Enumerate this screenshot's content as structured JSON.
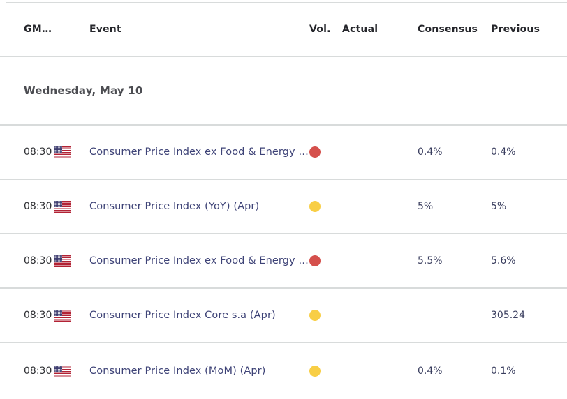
{
  "colors": {
    "border": "#d8dbdb",
    "header_text": "#25262b",
    "day_text": "#4c4d52",
    "time_text": "#2e2f33",
    "event_text": "#3e4377",
    "value_text": "#393d5e",
    "red_dot": "#d5504c",
    "yellow_dot": "#f8ce45",
    "flag_red": "#b22234",
    "flag_blue": "#3c3b6e"
  },
  "header": {
    "columns": {
      "gmt": "GM…",
      "event": "Event",
      "vol": "Vol.",
      "actual": "Actual",
      "consensus": "Consensus",
      "previous": "Previous"
    }
  },
  "sections": [
    {
      "day_label": "Wednesday, May 10",
      "rows": [
        {
          "time": "08:30",
          "country_flag": "us-flag-icon",
          "event": "Consumer Price Index ex Food & Energy …",
          "volatility": "high",
          "actual": "",
          "consensus": "0.4%",
          "previous": "0.4%"
        },
        {
          "time": "08:30",
          "country_flag": "us-flag-icon",
          "event": "Consumer Price Index (YoY) (Apr)",
          "volatility": "medium",
          "actual": "",
          "consensus": "5%",
          "previous": "5%"
        },
        {
          "time": "08:30",
          "country_flag": "us-flag-icon",
          "event": "Consumer Price Index ex Food & Energy …",
          "volatility": "high",
          "actual": "",
          "consensus": "5.5%",
          "previous": "5.6%"
        },
        {
          "time": "08:30",
          "country_flag": "us-flag-icon",
          "event": "Consumer Price Index Core s.a (Apr)",
          "volatility": "medium",
          "actual": "",
          "consensus": "",
          "previous": "305.24"
        },
        {
          "time": "08:30",
          "country_flag": "us-flag-icon",
          "event": "Consumer Price Index (MoM) (Apr)",
          "volatility": "medium",
          "actual": "",
          "consensus": "0.4%",
          "previous": "0.1%"
        }
      ]
    }
  ]
}
